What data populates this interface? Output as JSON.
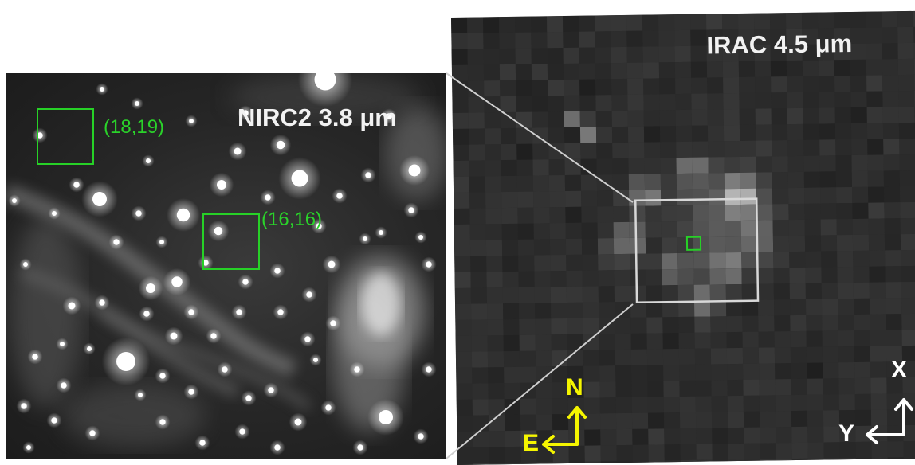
{
  "panels": {
    "nirc2": {
      "title": "NIRC2  3.8 μm",
      "regions": [
        {
          "label": "(18,19)"
        },
        {
          "label": "(16,16)"
        }
      ]
    },
    "irac": {
      "title": "IRAC 4.5 μm"
    }
  },
  "compass_nirc2": {
    "north": "N",
    "east": "E",
    "color": "#f5f500"
  },
  "compass_irac": {
    "x": "X",
    "y": "Y",
    "color": "#ffffff"
  },
  "colors": {
    "region_box": "#27d127",
    "zoom_box": "#d8d8d8",
    "label_text": "#f2f2f2"
  }
}
